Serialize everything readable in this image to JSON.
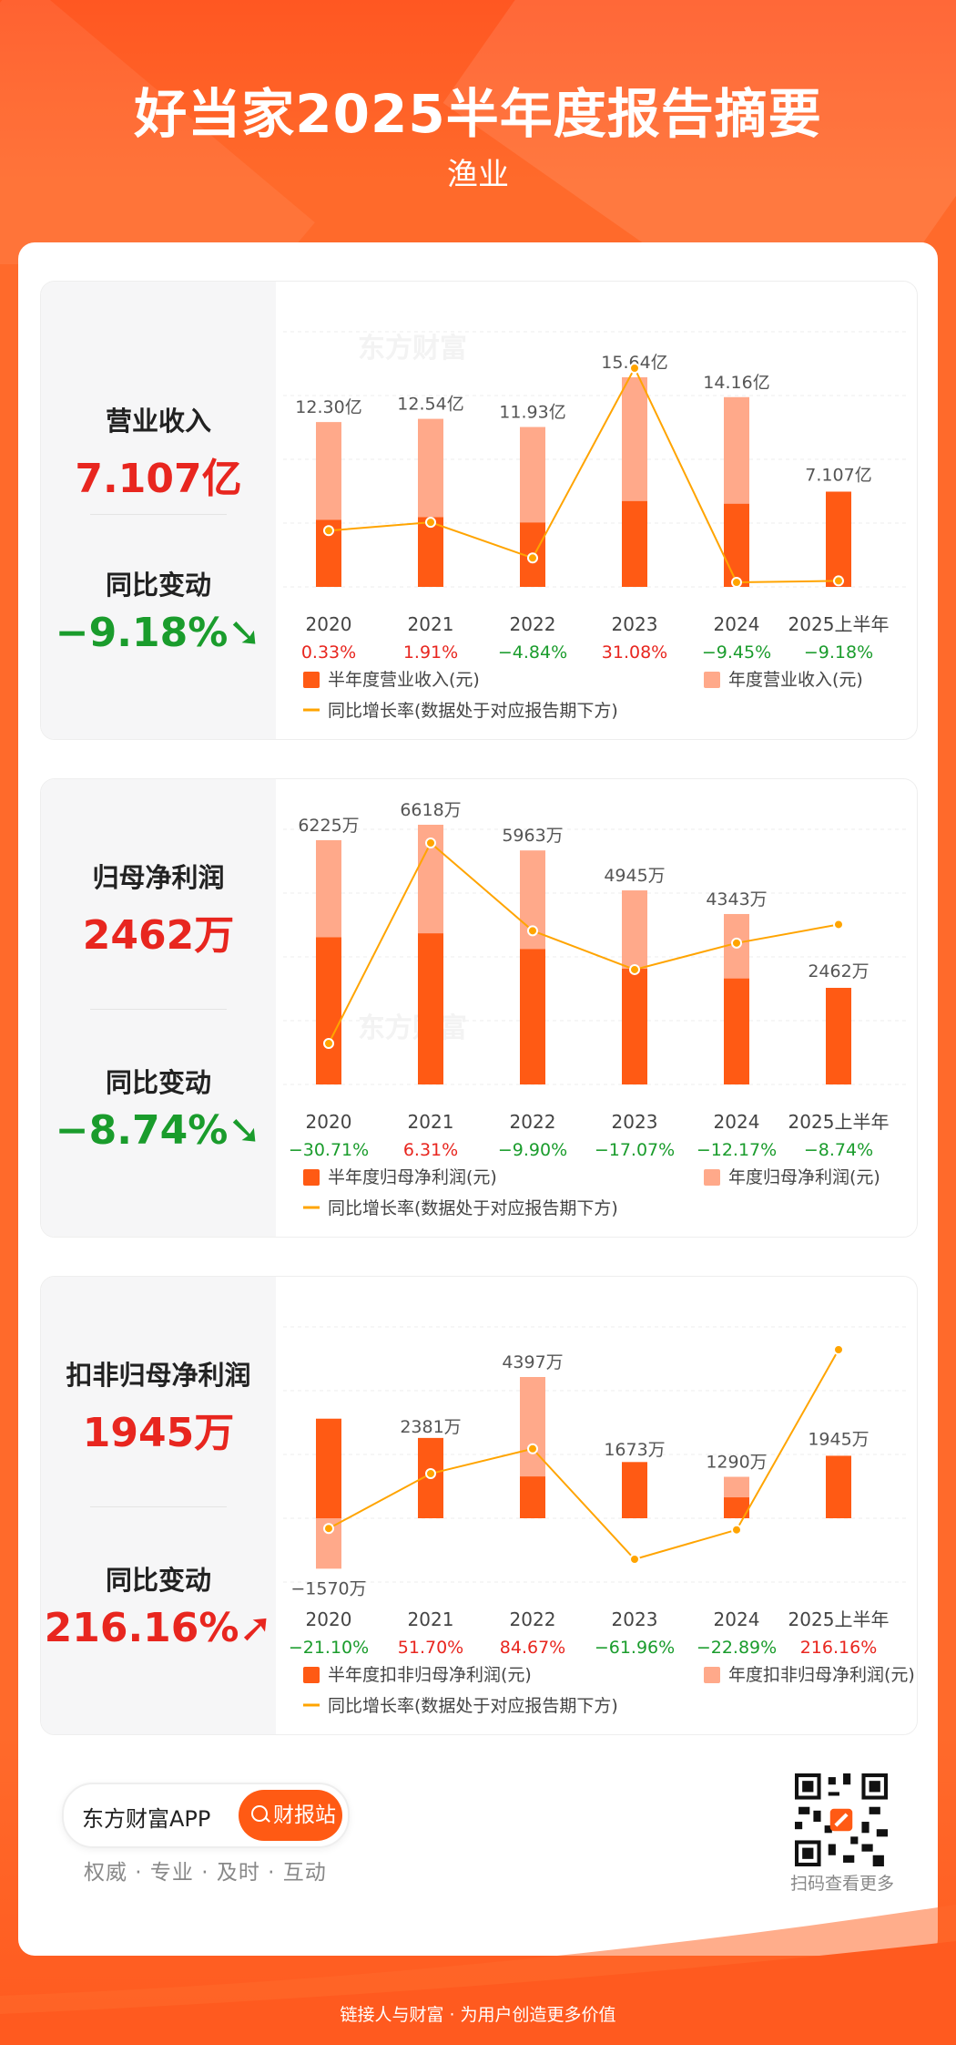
{
  "header": {
    "title": "好当家2025半年度报告摘要",
    "subtitle": "渔业"
  },
  "colors": {
    "bar_half": "#ff5a14",
    "bar_year": "#ffa98a",
    "line": "#ffa400",
    "up": "#e8261f",
    "down": "#1a9c2c",
    "watermark": "#f3f3f3"
  },
  "watermark": "东方财富",
  "sections": [
    {
      "label": "营业收入",
      "value": "7.107亿",
      "change_label": "同比变动",
      "change": "−9.18%",
      "direction": "down",
      "legend_half": "半年度营业收入(元)",
      "legend_year": "年度营业收入(元)",
      "legend_line": "同比增长率(数据处于对应报告期下方)"
    },
    {
      "label": "归母净利润",
      "value": "2462万",
      "change_label": "同比变动",
      "change": "−8.74%",
      "direction": "down",
      "legend_half": "半年度归母净利润(元)",
      "legend_year": "年度归母净利润(元)",
      "legend_line": "同比增长率(数据处于对应报告期下方)"
    },
    {
      "label": "扣非归母净利润",
      "value": "1945万",
      "change_label": "同比变动",
      "change": "216.16%",
      "direction": "up",
      "legend_half": "半年度扣非归母净利润(元)",
      "legend_year": "年度扣非归母净利润(元)",
      "legend_line": "同比增长率(数据处于对应报告期下方)"
    }
  ],
  "chart_data": [
    {
      "type": "bar",
      "categories": [
        "2020",
        "2021",
        "2022",
        "2023",
        "2024",
        "2025上半年"
      ],
      "series": [
        {
          "name": "年度营业收入(元)",
          "values": [
            12.3,
            12.54,
            11.93,
            15.64,
            14.16,
            null
          ],
          "labels": [
            "12.30亿",
            "12.54亿",
            "11.93亿",
            "15.64亿",
            "14.16亿",
            ""
          ]
        },
        {
          "name": "半年度营业收入(元)",
          "values": [
            5.0,
            5.2,
            4.8,
            6.4,
            6.2,
            7.107
          ],
          "labels": [
            "",
            "",
            "",
            "",
            "",
            "7.107亿"
          ]
        },
        {
          "name": "同比增长率(数据处于对应报告期下方)",
          "values": [
            0.33,
            1.91,
            -4.84,
            31.08,
            -9.45,
            -9.18
          ],
          "labels": [
            "0.33%",
            "1.91%",
            "−4.84%",
            "31.08%",
            "−9.45%",
            "−9.18%"
          ]
        }
      ]
    },
    {
      "type": "bar",
      "categories": [
        "2020",
        "2021",
        "2022",
        "2023",
        "2024",
        "2025上半年"
      ],
      "series": [
        {
          "name": "年度归母净利润(元)",
          "values": [
            6225,
            6618,
            5963,
            4945,
            4343,
            null
          ],
          "labels": [
            "6225万",
            "6618万",
            "5963万",
            "4945万",
            "4343万",
            ""
          ]
        },
        {
          "name": "半年度归母净利润(元)",
          "values": [
            3750,
            3850,
            3450,
            2950,
            2700,
            2462
          ],
          "labels": [
            "",
            "",
            "",
            "",
            "",
            "2462万"
          ]
        },
        {
          "name": "同比增长率(数据处于对应报告期下方)",
          "values": [
            -30.71,
            6.31,
            -9.9,
            -17.07,
            -12.17,
            -8.74
          ],
          "labels": [
            "−30.71%",
            "6.31%",
            "−9.90%",
            "−17.07%",
            "−12.17%",
            "−8.74%"
          ]
        }
      ]
    },
    {
      "type": "bar",
      "categories": [
        "2020",
        "2021",
        "2022",
        "2023",
        "2024",
        "2025上半年"
      ],
      "series": [
        {
          "name": "年度扣非归母净利润(元)",
          "values": [
            -1570,
            2381,
            4397,
            1673,
            1290,
            null
          ],
          "labels": [
            "−1570万",
            "2381万",
            "4397万",
            "1673万",
            "1290万",
            ""
          ]
        },
        {
          "name": "半年度扣非归母净利润(元)",
          "values": [
            3100,
            2500,
            1300,
            1750,
            650,
            1945
          ],
          "labels": [
            "",
            "",
            "",
            "",
            "",
            "1945万"
          ]
        },
        {
          "name": "同比增长率(数据处于对应报告期下方)",
          "values": [
            -21.1,
            51.7,
            84.67,
            -61.96,
            -22.89,
            216.16
          ],
          "labels": [
            "−21.10%",
            "51.70%",
            "84.67%",
            "−61.96%",
            "−22.89%",
            "216.16%"
          ]
        }
      ]
    }
  ],
  "footer": {
    "app_name": "东方财富APP",
    "button_label": "财报站",
    "slogan": "权威 · 专业 · 及时 · 互动",
    "qr_caption": "扫码查看更多",
    "tagline": "链接人与财富 · 为用户创造更多价值"
  }
}
